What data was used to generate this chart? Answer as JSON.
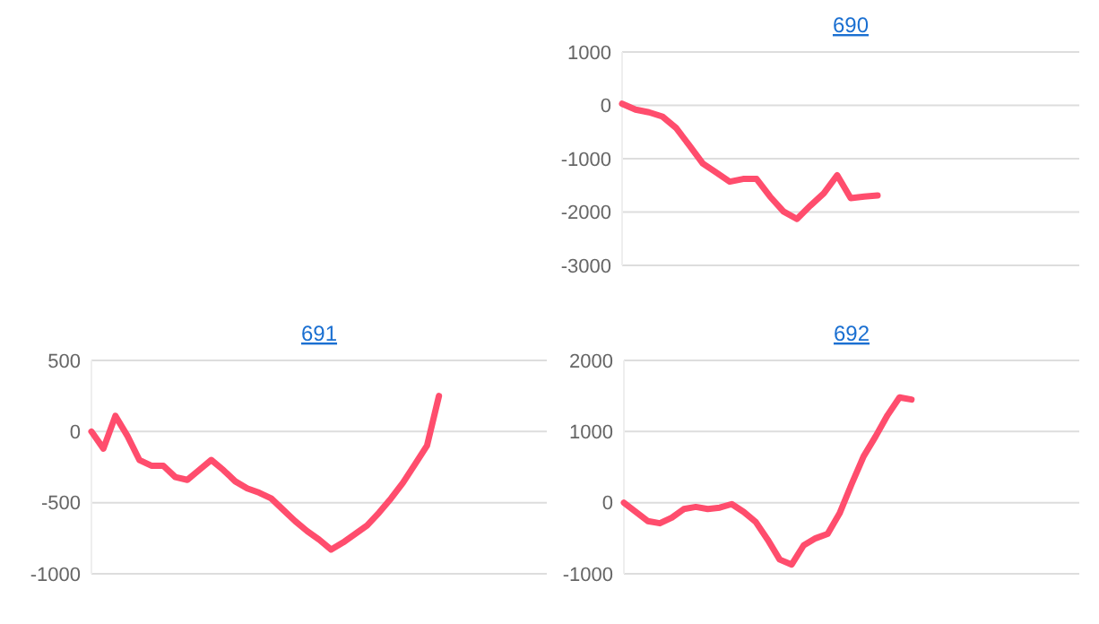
{
  "chart_data": [
    {
      "type": "line",
      "title": "690",
      "categories": [
        null,
        null,
        null,
        null,
        null,
        null,
        null,
        null,
        null,
        null,
        null,
        null,
        null,
        null,
        null,
        null,
        null,
        null,
        null,
        null,
        null,
        null,
        null,
        null,
        null,
        null,
        null,
        null,
        null,
        null,
        null,
        null,
        null,
        null,
        null
      ],
      "series": [
        {
          "color": "#ff4d6d",
          "values": [
            30,
            -80,
            -130,
            -210,
            -420,
            -750,
            -1090,
            -1260,
            -1430,
            -1380,
            -1380,
            -1710,
            -1990,
            -2130,
            -1880,
            -1650,
            -1310,
            -1740,
            -1710,
            -1690,
            null,
            null,
            null,
            null,
            null,
            null,
            null,
            null,
            null,
            null,
            null,
            null,
            null,
            null,
            null
          ]
        }
      ],
      "ylim": [
        -3000,
        1000
      ],
      "yticks": [
        -3000,
        -2000,
        -1000,
        0,
        1000
      ],
      "grid": "y",
      "tick_labels": "y"
    },
    {
      "type": "line",
      "title": "691",
      "categories": [
        null,
        null,
        null,
        null,
        null,
        null,
        null,
        null,
        null,
        null,
        null,
        null,
        null,
        null,
        null,
        null,
        null,
        null,
        null,
        null,
        null,
        null,
        null,
        null,
        null,
        null,
        null,
        null,
        null,
        null,
        null,
        null,
        null,
        null,
        null,
        null,
        null,
        null,
        null
      ],
      "series": [
        {
          "color": "#ff4d6d",
          "values": [
            0,
            -120,
            110,
            -30,
            -200,
            -240,
            -240,
            -320,
            -340,
            -270,
            -200,
            -270,
            -350,
            -400,
            -430,
            -470,
            -550,
            -630,
            -700,
            -760,
            -830,
            -780,
            -720,
            -660,
            -570,
            -470,
            -360,
            -230,
            -100,
            250,
            null,
            null,
            null,
            null,
            null,
            null,
            null,
            null,
            null
          ]
        }
      ],
      "ylim": [
        -1000,
        500
      ],
      "yticks": [
        -1000,
        -500,
        0,
        500
      ],
      "grid": "y",
      "tick_labels": "y"
    },
    {
      "type": "line",
      "title": "692",
      "categories": [
        null,
        null,
        null,
        null,
        null,
        null,
        null,
        null,
        null,
        null,
        null,
        null,
        null,
        null,
        null,
        null,
        null,
        null,
        null,
        null,
        null,
        null,
        null,
        null,
        null,
        null,
        null,
        null,
        null,
        null,
        null,
        null,
        null,
        null,
        null,
        null,
        null,
        null,
        null
      ],
      "series": [
        {
          "color": "#ff4d6d",
          "values": [
            0,
            -130,
            -260,
            -290,
            -210,
            -90,
            -60,
            -90,
            -70,
            -20,
            -130,
            -270,
            -520,
            -800,
            -870,
            -600,
            -500,
            -440,
            -150,
            260,
            650,
            930,
            1230,
            1480,
            1450,
            null,
            null,
            null,
            null,
            null,
            null,
            null,
            null,
            null,
            null,
            null,
            null,
            null,
            null
          ]
        }
      ],
      "ylim": [
        -1000,
        2000
      ],
      "yticks": [
        -1000,
        0,
        1000,
        2000
      ],
      "grid": "y",
      "tick_labels": "y"
    }
  ]
}
